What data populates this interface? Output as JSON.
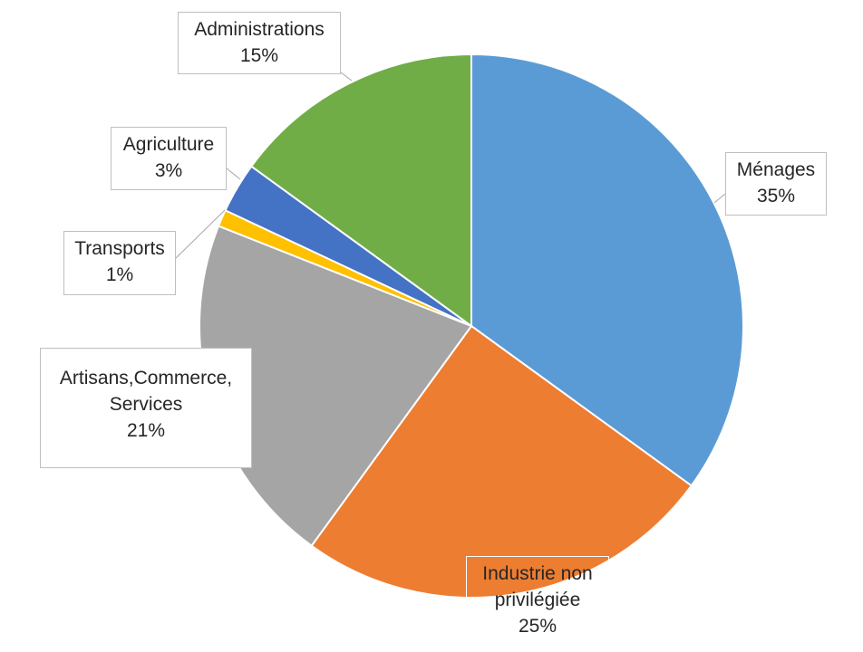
{
  "chart_data": {
    "type": "pie",
    "title": "",
    "start": "top",
    "direction": "clockwise",
    "slices": [
      {
        "name": "Ménages",
        "label_lines": [
          "Ménages"
        ],
        "value": 35,
        "pct": "35%",
        "color": "#5B9BD5"
      },
      {
        "name": "Industrie non privilégiée",
        "label_lines": [
          "Industrie non",
          "privilégiée"
        ],
        "value": 25,
        "pct": "25%",
        "color": "#ED7D31"
      },
      {
        "name": "Artisans,Commerce, Services",
        "label_lines": [
          "Artisans,Commerce,",
          "Services"
        ],
        "value": 21,
        "pct": "21%",
        "color": "#A5A5A5"
      },
      {
        "name": "Transports",
        "label_lines": [
          "Transports"
        ],
        "value": 1,
        "pct": "1%",
        "color": "#FFC000"
      },
      {
        "name": "Agriculture",
        "label_lines": [
          "Agriculture"
        ],
        "value": 3,
        "pct": "3%",
        "color": "#4472C4"
      },
      {
        "name": "Administrations",
        "label_lines": [
          "Administrations"
        ],
        "value": 15,
        "pct": "15%",
        "color": "#70AD47"
      }
    ]
  }
}
